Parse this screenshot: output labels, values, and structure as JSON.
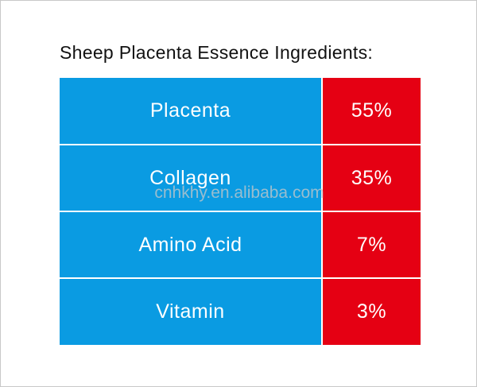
{
  "header": {
    "title": "Sheep Placenta Essence Ingredients:"
  },
  "table": {
    "rows": [
      [
        "Placenta",
        "55%"
      ],
      [
        "Collagen",
        "35%"
      ],
      [
        "Amino Acid",
        "7%"
      ],
      [
        "Vitamin",
        "3%"
      ]
    ]
  },
  "watermark": "cnhkhy.en.alibaba.com"
}
